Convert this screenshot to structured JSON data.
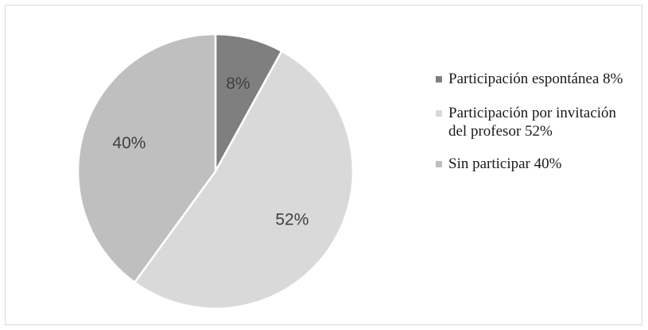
{
  "chart_data": {
    "type": "pie",
    "slices": [
      {
        "name": "Participación espontánea",
        "value": 8,
        "label": "8%",
        "legend": "Participación espontánea 8%",
        "color": "#7f7f7f"
      },
      {
        "name": "Participación por invitación del profesor",
        "value": 52,
        "label": "52%",
        "legend": "Participación por invitación del profesor 52%",
        "color": "#d9d9d9"
      },
      {
        "name": "Sin participar",
        "value": 40,
        "label": "40%",
        "legend": "Sin participar 40%",
        "color": "#bfbfbf"
      }
    ],
    "legend_position": "right"
  }
}
